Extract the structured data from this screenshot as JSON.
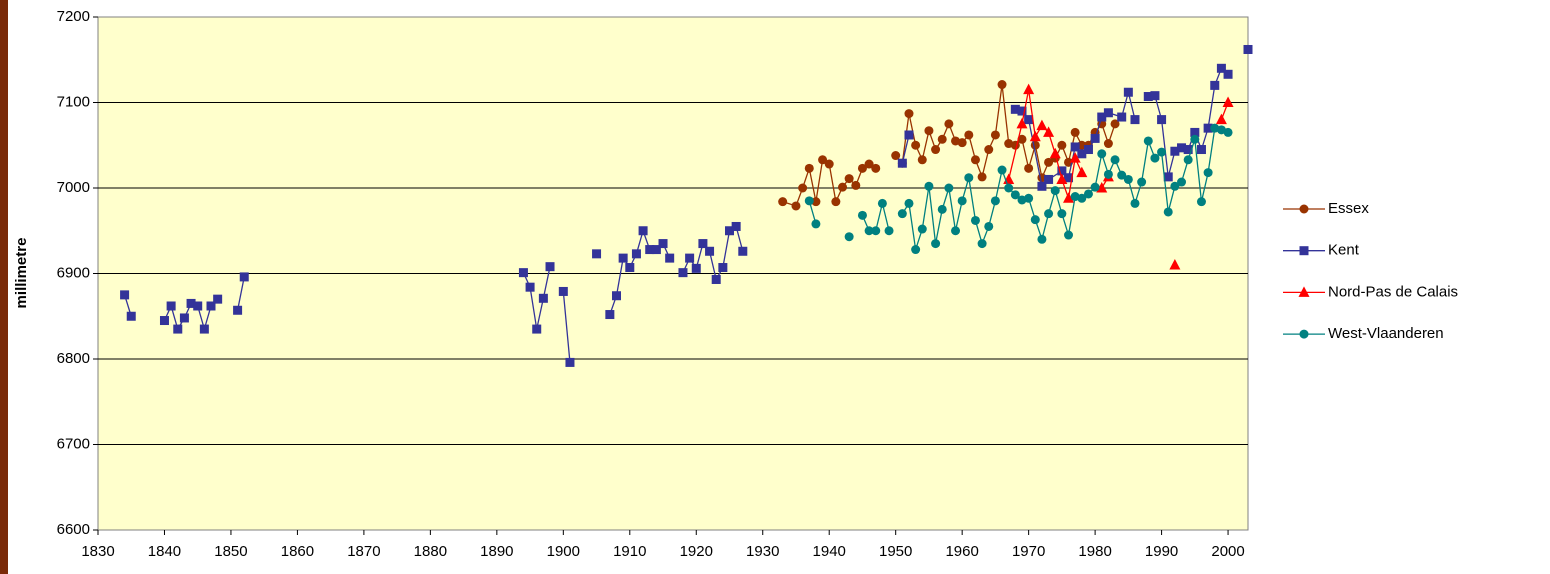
{
  "chart_data": {
    "type": "line",
    "ylabel": "millimetre",
    "xlim": [
      1830,
      2003
    ],
    "ylim": [
      6600,
      7200
    ],
    "xticks": [
      1830,
      1840,
      1850,
      1860,
      1870,
      1880,
      1890,
      1900,
      1910,
      1920,
      1930,
      1940,
      1950,
      1960,
      1970,
      1980,
      1990,
      2000
    ],
    "yticks": [
      6600,
      6700,
      6800,
      6900,
      7000,
      7100,
      7200
    ],
    "grid": true,
    "legend": "right",
    "series": [
      {
        "name": "Essex",
        "color": "#993300",
        "marker": "circle",
        "x": [
          1933,
          1935,
          1936,
          1937,
          1938,
          1939,
          1940,
          1941,
          1942,
          1943,
          1944,
          1945,
          1946,
          1947,
          1948,
          1950,
          1951,
          1952,
          1953,
          1954,
          1955,
          1956,
          1957,
          1958,
          1959,
          1960,
          1961,
          1962,
          1963,
          1964,
          1965,
          1966,
          1967,
          1968,
          1969,
          1970,
          1971,
          1972,
          1973,
          1974,
          1975,
          1976,
          1977,
          1978,
          1979,
          1980,
          1981,
          1982,
          1983
        ],
        "values": [
          6984,
          6979,
          7000,
          7023,
          6984,
          7033,
          7028,
          6984,
          7001,
          7011,
          7003,
          7023,
          7028,
          7023,
          null,
          7038,
          7029,
          7087,
          7050,
          7033,
          7067,
          7045,
          7057,
          7075,
          7055,
          7053,
          7062,
          7033,
          7013,
          7045,
          7062,
          7121,
          7052,
          7050,
          7057,
          7023,
          7050,
          7012,
          7030,
          7035,
          7050,
          7030,
          7065,
          7050,
          7050,
          7065,
          7075,
          7052,
          7075
        ]
      },
      {
        "name": "Kent",
        "color": "#333399",
        "marker": "square",
        "x": [
          1834,
          1835,
          1837,
          1840,
          1841,
          1842,
          1843,
          1844,
          1845,
          1846,
          1847,
          1848,
          1849,
          1851,
          1852,
          1870,
          1894,
          1895,
          1896,
          1897,
          1898,
          1899,
          1900,
          1901,
          1903,
          1905,
          1906,
          1907,
          1908,
          1909,
          1910,
          1911,
          1912,
          1913,
          1914,
          1915,
          1916,
          1917,
          1918,
          1919,
          1920,
          1921,
          1922,
          1923,
          1924,
          1925,
          1926,
          1927,
          1940,
          1951,
          1952,
          1960,
          1968,
          1969,
          1970,
          1972,
          1973,
          1975,
          1976,
          1977,
          1978,
          1979,
          1980,
          1981,
          1982,
          1984,
          1985,
          1986,
          1987,
          1988,
          1989,
          1990,
          1991,
          1992,
          1993,
          1994,
          1995,
          1996,
          1997,
          1998,
          1999,
          2000,
          2001,
          2003
        ],
        "values": [
          6875,
          6850,
          null,
          6845,
          6862,
          6835,
          6848,
          6865,
          6862,
          6835,
          6862,
          6870,
          null,
          6857,
          6896,
          null,
          6901,
          6884,
          6835,
          6871,
          6908,
          null,
          6879,
          6796,
          null,
          6923,
          null,
          6852,
          6874,
          6918,
          6907,
          6923,
          6950,
          6928,
          6928,
          6935,
          6918,
          null,
          6901,
          6918,
          6906,
          6935,
          6926,
          6893,
          6907,
          6950,
          6955,
          6926,
          null,
          7029,
          7062,
          null,
          7092,
          7090,
          7080,
          7002,
          7010,
          7020,
          7012,
          7048,
          7040,
          7045,
          7058,
          7083,
          7088,
          7083,
          7112,
          7080,
          null,
          7107,
          7108,
          7080,
          7013,
          7043,
          7047,
          7045,
          7065,
          7045,
          7070,
          7120,
          7140,
          7133,
          null,
          7162
        ]
      },
      {
        "name": "Nord-Pas de Calais",
        "color": "#ff0000",
        "marker": "triangle",
        "x": [
          1967,
          1969,
          1970,
          1971,
          1972,
          1973,
          1974,
          1975,
          1976,
          1977,
          1978,
          1980,
          1981,
          1982,
          1987,
          1992,
          1995,
          1999,
          2000
        ],
        "values": [
          7010,
          7075,
          7115,
          7060,
          7073,
          7065,
          7040,
          7010,
          6988,
          7035,
          7018,
          null,
          7000,
          7013,
          null,
          6910,
          null,
          7080,
          7100
        ]
      },
      {
        "name": "West-Vlaanderen",
        "color": "#008080",
        "marker": "circle",
        "x": [
          1937,
          1938,
          1940,
          1943,
          1944,
          1945,
          1946,
          1947,
          1948,
          1949,
          1950,
          1951,
          1952,
          1953,
          1954,
          1955,
          1956,
          1957,
          1958,
          1959,
          1960,
          1961,
          1962,
          1963,
          1964,
          1965,
          1966,
          1967,
          1968,
          1969,
          1970,
          1971,
          1972,
          1973,
          1974,
          1975,
          1976,
          1977,
          1978,
          1979,
          1980,
          1981,
          1982,
          1983,
          1984,
          1985,
          1986,
          1987,
          1988,
          1989,
          1990,
          1991,
          1992,
          1993,
          1994,
          1995,
          1996,
          1997,
          1998,
          1999,
          2000
        ],
        "values": [
          6985,
          6958,
          null,
          6943,
          null,
          6968,
          6950,
          6950,
          6982,
          6950,
          null,
          6970,
          6982,
          6928,
          6952,
          7002,
          6935,
          6975,
          7000,
          6950,
          6985,
          7012,
          6962,
          6935,
          6955,
          6985,
          7021,
          7000,
          6992,
          6986,
          6988,
          6963,
          6940,
          6970,
          6997,
          6970,
          6945,
          6990,
          6988,
          6993,
          7001,
          7040,
          7016,
          7033,
          7015,
          7010,
          6982,
          7007,
          7055,
          7035,
          7042,
          6972,
          7002,
          7007,
          7033,
          7057,
          6984,
          7018,
          7070,
          7068,
          7065
        ]
      }
    ]
  }
}
